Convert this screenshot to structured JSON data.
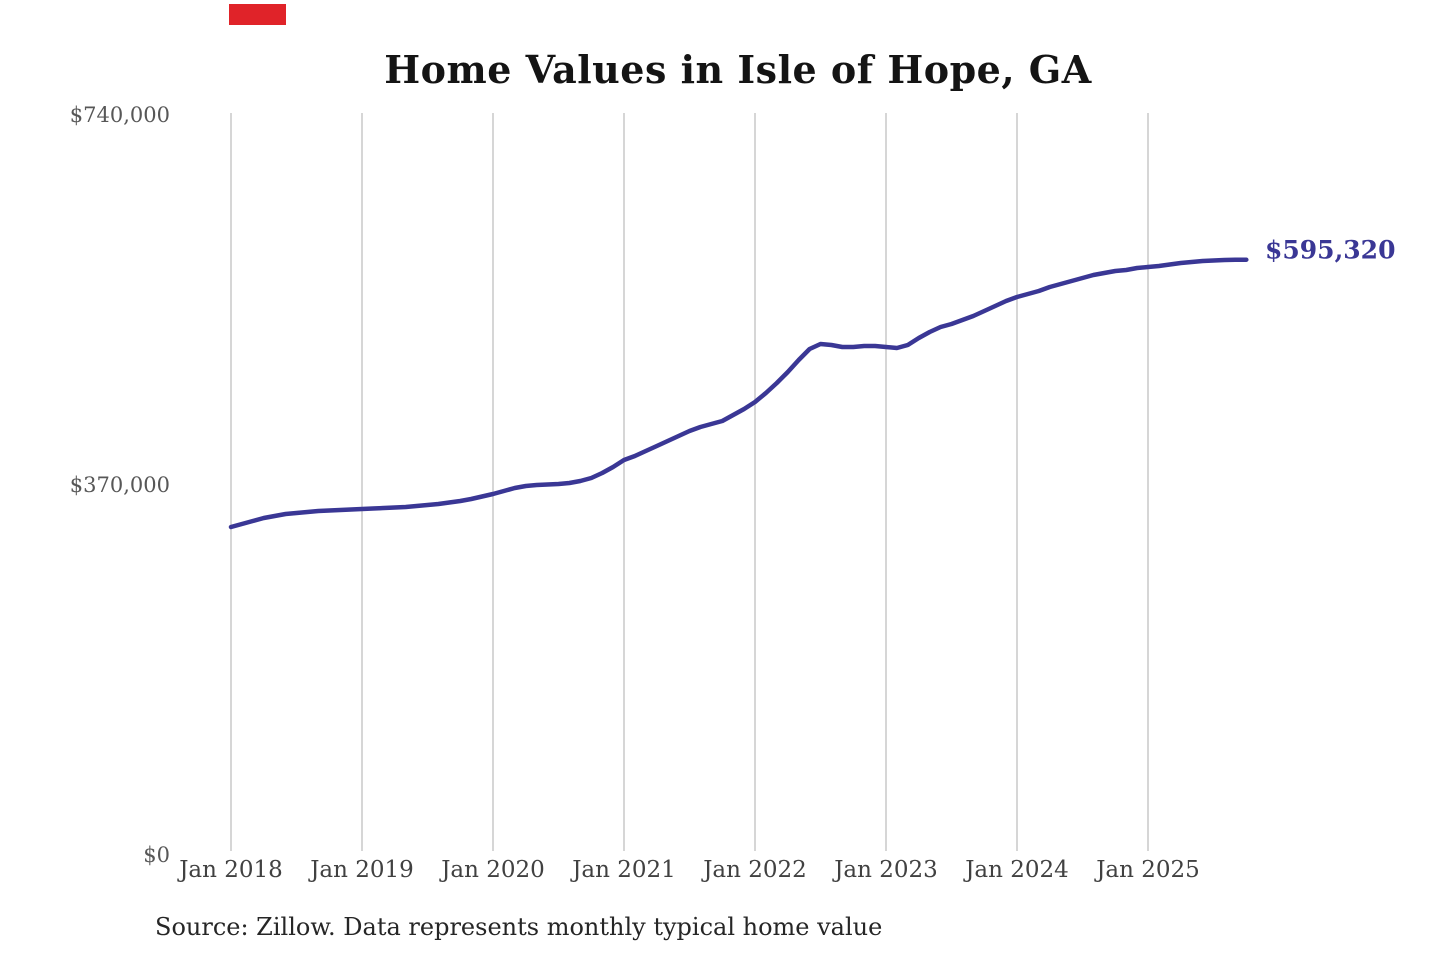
{
  "title": "Home Values in Isle of Hope, GA",
  "end_label": "$595,320",
  "source_note": "Source: Zillow. Data represents monthly typical home value",
  "annotation_box": {
    "color": "#e02329"
  },
  "y_axis": {
    "labels": [
      {
        "text": "$740,000",
        "value": 740000
      },
      {
        "text": "$370,000",
        "value": 370000
      },
      {
        "text": "$0",
        "value": 0
      }
    ]
  },
  "x_axis": {
    "labels": [
      "Jan 2018",
      "Jan 2019",
      "Jan 2020",
      "Jan 2021",
      "Jan 2022",
      "Jan 2023",
      "Jan 2024",
      "Jan 2025"
    ]
  },
  "chart_data": {
    "type": "line",
    "title": "Home Values in Isle of Hope, GA",
    "xlabel": "",
    "ylabel": "",
    "x_unit": "month",
    "x_start": "Jan 2018",
    "x_end": "Oct 2025",
    "x_tick_labels": [
      "Jan 2018",
      "Jan 2019",
      "Jan 2020",
      "Jan 2021",
      "Jan 2022",
      "Jan 2023",
      "Jan 2024",
      "Jan 2025"
    ],
    "y_tick_labels": [
      "$0",
      "$370,000",
      "$740,000"
    ],
    "ylim": [
      0,
      740000
    ],
    "grid": "vertical-only",
    "gridline_color": "#c9c9c9",
    "legend": "none",
    "end_annotation": {
      "text": "$595,320",
      "value": 595320,
      "color": "#3a3795"
    },
    "source": "Source: Zillow. Data represents monthly typical home value",
    "series": [
      {
        "name": "Monthly typical home value",
        "color": "#3a3795",
        "values": [
          328000,
          331000,
          334000,
          337000,
          339000,
          341000,
          342000,
          343000,
          344000,
          344500,
          345000,
          345500,
          346000,
          346500,
          347000,
          347500,
          348000,
          349000,
          350000,
          351000,
          352500,
          354000,
          356000,
          358500,
          361000,
          364000,
          367000,
          369000,
          370000,
          370500,
          371000,
          372000,
          374000,
          377000,
          382000,
          388000,
          395000,
          399000,
          404000,
          409000,
          414000,
          419000,
          424000,
          428000,
          431000,
          434000,
          440000,
          446000,
          453000,
          462000,
          472000,
          483000,
          495000,
          506000,
          511000,
          510000,
          508000,
          508000,
          509000,
          509000,
          508000,
          507000,
          510000,
          517000,
          523000,
          528000,
          531000,
          535000,
          539000,
          544000,
          549000,
          554000,
          558000,
          561000,
          564000,
          568000,
          571000,
          574000,
          577000,
          580000,
          582000,
          584000,
          585000,
          587000,
          588000,
          589000,
          590500,
          592000,
          593000,
          594000,
          594500,
          595000,
          595200,
          595320
        ]
      }
    ]
  }
}
